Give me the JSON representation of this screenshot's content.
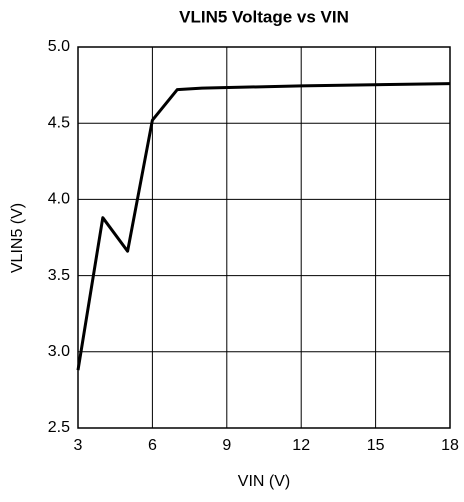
{
  "chart_data": {
    "type": "line",
    "title": "VLIN5 Voltage vs VIN",
    "xlabel": "VIN (V)",
    "ylabel": "VLIN5 (V)",
    "x": [
      3,
      4,
      5,
      6,
      7,
      8,
      12,
      18
    ],
    "series": [
      {
        "name": "VLIN5",
        "color": "#000000",
        "values": [
          2.88,
          3.88,
          3.66,
          4.52,
          4.72,
          4.73,
          4.745,
          4.76
        ]
      }
    ],
    "xlim": [
      3,
      18
    ],
    "xticks": [
      3,
      6,
      9,
      12,
      15,
      18
    ],
    "ylim": [
      2.5,
      5.0
    ],
    "yticks": [
      2.5,
      {
        "value": 3,
        "label": "3.0"
      },
      3.5,
      {
        "value": 4,
        "label": "4.0"
      },
      4.5,
      {
        "value": 5,
        "label": "5.0"
      }
    ],
    "grid": true
  }
}
